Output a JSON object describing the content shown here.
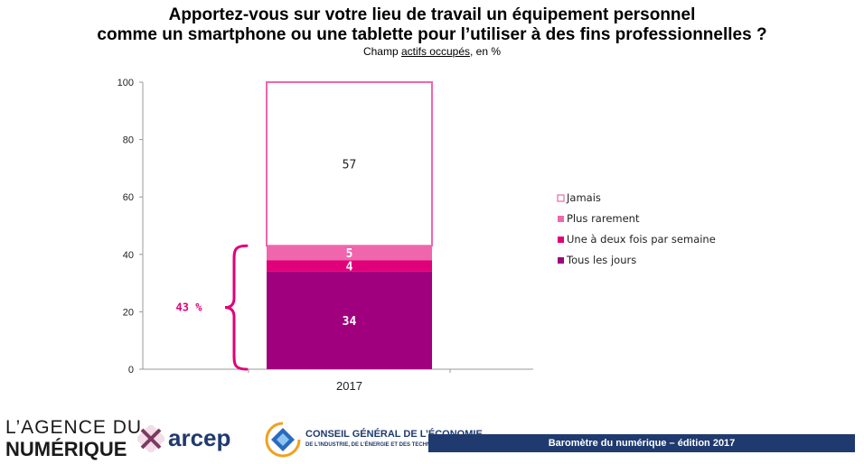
{
  "header": {
    "title_line1": "Apportez-vous sur votre lieu de travail un équipement personnel",
    "title_line2": "comme un smartphone ou une tablette pour l’utiliser à des fins professionnelles ?",
    "subtitle_prefix": "Champ ",
    "subtitle_link": "actifs occupés",
    "subtitle_suffix": ", en %"
  },
  "chart_data": {
    "type": "bar",
    "stacked": true,
    "categories": [
      "2017"
    ],
    "series": [
      {
        "name": "Tous les jours",
        "values": [
          34
        ],
        "color": "#a0007e"
      },
      {
        "name": "Une à deux fois par semaine",
        "values": [
          4
        ],
        "color": "#e0007a"
      },
      {
        "name": "Plus rarement",
        "values": [
          5
        ],
        "color": "#f066ad"
      },
      {
        "name": "Jamais",
        "values": [
          57
        ],
        "color": "#ffffff",
        "stroke": "#f066ad"
      }
    ],
    "ylim": [
      0,
      100
    ],
    "yticks": [
      0,
      20,
      40,
      60,
      80,
      100
    ],
    "legend_position": "right",
    "annotation": {
      "label": "43 %",
      "from": 0,
      "to": 43,
      "color": "#e0007a"
    }
  },
  "footer": {
    "banner": "Baromètre  du numérique – édition 2017",
    "agence_line1": "L’AGENCE DU",
    "agence_line2": "NUMÉRIQUE",
    "arcep": "arcep",
    "cge_line1": "CONSEIL GÉNÉRAL DE L’ÉCONOMIE",
    "cge_line2": "DE L’INDUSTRIE, DE L’ÉNERGIE ET DES TECHNOLOGIES"
  }
}
